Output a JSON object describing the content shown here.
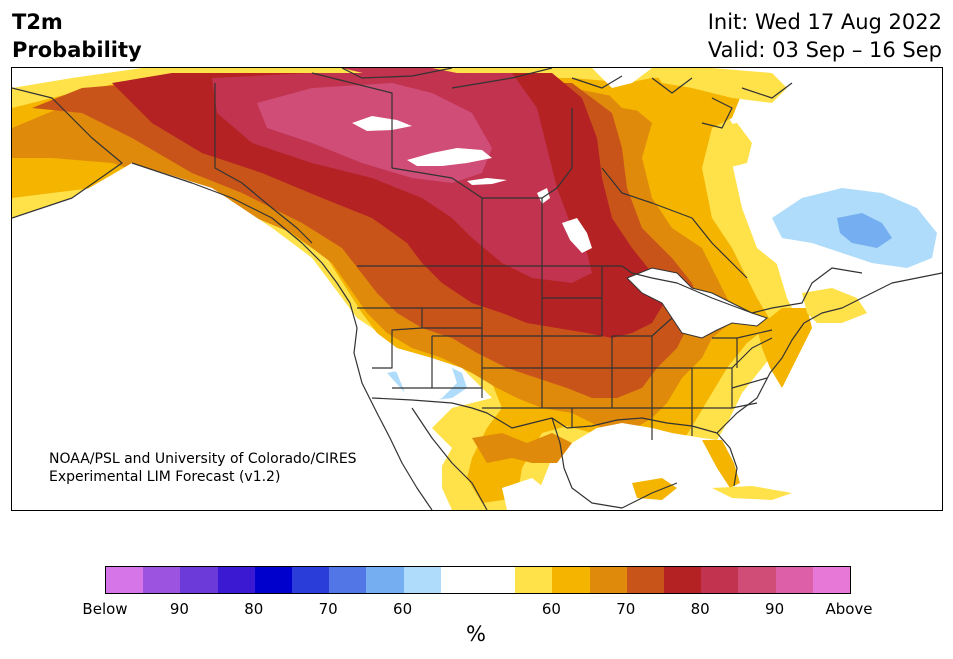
{
  "title": {
    "line1": "T2m",
    "line2": "Probability"
  },
  "forecast_info": {
    "init": "Init: Wed 17 Aug 2022",
    "valid": "Valid: 03 Sep – 16 Sep"
  },
  "credit": {
    "line1": "NOAA/PSL and University of Colorado/CIRES",
    "line2": "Experimental LIM Forecast (v1.2)"
  },
  "colorbar": {
    "colors": [
      "#d675e8",
      "#9b53e0",
      "#6b3ad9",
      "#3b18d2",
      "#0000cc",
      "#2a3dd8",
      "#5276e6",
      "#76aef2",
      "#aedcfa",
      "#ffffff",
      "#ffffff",
      "#ffe14a",
      "#f4b400",
      "#e08a0c",
      "#c9541a",
      "#b42223",
      "#c1334e",
      "#cf4d77",
      "#dc5fa8",
      "#e878d8"
    ],
    "tick_labels": [
      "Below",
      "90",
      "80",
      "70",
      "60",
      "60",
      "70",
      "80",
      "90",
      "Above"
    ],
    "unit": "%"
  },
  "map": {
    "palette": {
      "yellow": "#ffe14a",
      "gold": "#f4b400",
      "orange": "#e08a0c",
      "dark_orange": "#c9541a",
      "red": "#b42223",
      "crimson": "#c1334e",
      "rose": "#cf4d77",
      "light_blue": "#aedcfa",
      "blue": "#76aef2",
      "water": "#ffffff",
      "border": "#333333"
    }
  }
}
